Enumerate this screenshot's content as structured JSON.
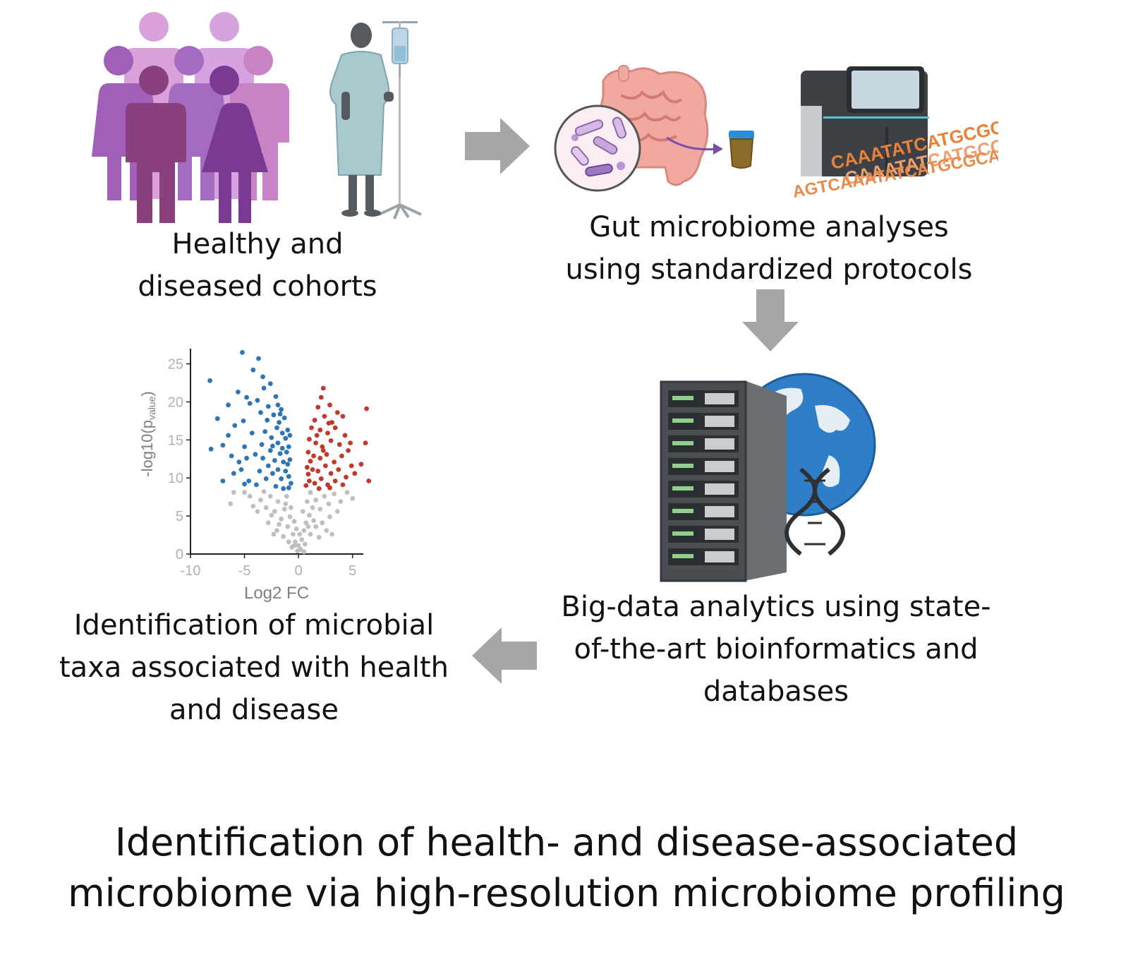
{
  "steps": {
    "cohorts": {
      "line1": "Healthy and",
      "line2": "diseased cohorts"
    },
    "gut": {
      "line1": "Gut microbiome analyses",
      "line2": "using standardized protocols"
    },
    "bigdata": {
      "line1": "Big-data analytics using state-",
      "line2": "of-the-art bioinformatics and",
      "line3": "databases"
    },
    "identification": {
      "line1": "Identification of microbial",
      "line2": "taxa associated with health",
      "line3": "and disease"
    }
  },
  "dna_sequence": {
    "line1": "CAAATATCATGCGCAT",
    "line2": "CAAATATCATGCG",
    "line3": "AGTCAAATATCATGCGCAT"
  },
  "main_title": {
    "line1": "Identification of health- and disease-associated",
    "line2": "microbiome via high-resolution microbiome profiling"
  },
  "colors": {
    "arrow": "#a6a6a6",
    "up": "#c0392b",
    "down": "#2e75b6",
    "ns": "#bfbfbf"
  },
  "chart_data": {
    "type": "scatter",
    "subtype": "volcano",
    "xlabel": "Log2 FC",
    "ylabel": "-log10(p",
    "ylabel_sub": "value",
    "xlim": [
      -10,
      6
    ],
    "ylim": [
      0,
      27
    ],
    "xticks": [
      -10,
      -5,
      0,
      5
    ],
    "yticks": [
      0,
      5,
      10,
      15,
      20,
      25
    ],
    "series": [
      {
        "name": "",
        "color": "#2e75b6",
        "points": [
          [
            -8.2,
            22.8
          ],
          [
            -5.2,
            26.5
          ],
          [
            -3.7,
            25.7
          ],
          [
            -4.2,
            24.2
          ],
          [
            -3.3,
            23.3
          ],
          [
            -6.5,
            19.6
          ],
          [
            -8.1,
            13.8
          ],
          [
            -7.5,
            17.8
          ],
          [
            -5.6,
            21.3
          ],
          [
            -4.8,
            20.6
          ],
          [
            -4.5,
            19.8
          ],
          [
            -3.2,
            21.8
          ],
          [
            -2.6,
            22.4
          ],
          [
            -3.8,
            20.2
          ],
          [
            -2.8,
            19.4
          ],
          [
            -2.1,
            20.7
          ],
          [
            -1.9,
            19.6
          ],
          [
            -1.6,
            19.0
          ],
          [
            -6.5,
            15.6
          ],
          [
            -5.9,
            16.9
          ],
          [
            -5.1,
            17.5
          ],
          [
            -3.5,
            18.6
          ],
          [
            -2.9,
            17.6
          ],
          [
            -2.3,
            18.3
          ],
          [
            -1.8,
            17.3
          ],
          [
            -1.3,
            17.9
          ],
          [
            -1.0,
            16.3
          ],
          [
            -7.0,
            14.3
          ],
          [
            -5.0,
            14.1
          ],
          [
            -4.3,
            15.9
          ],
          [
            -3.1,
            16.1
          ],
          [
            -2.5,
            15.3
          ],
          [
            -1.9,
            14.6
          ],
          [
            -1.5,
            15.9
          ],
          [
            -1.2,
            15.2
          ],
          [
            -0.9,
            14.1
          ],
          [
            -6.2,
            12.9
          ],
          [
            -5.5,
            12.1
          ],
          [
            -4.0,
            13.1
          ],
          [
            -3.3,
            12.6
          ],
          [
            -2.6,
            13.6
          ],
          [
            -2.2,
            12.3
          ],
          [
            -1.7,
            13.2
          ],
          [
            -1.4,
            12.1
          ],
          [
            -1.1,
            13.4
          ],
          [
            -0.8,
            12.4
          ],
          [
            -7.0,
            9.6
          ],
          [
            -6.0,
            10.6
          ],
          [
            -5.3,
            11.1
          ],
          [
            -4.6,
            9.6
          ],
          [
            -3.6,
            10.9
          ],
          [
            -3.0,
            9.9
          ],
          [
            -2.4,
            10.6
          ],
          [
            -1.9,
            11.1
          ],
          [
            -1.6,
            9.9
          ],
          [
            -1.2,
            10.9
          ],
          [
            -0.9,
            10.2
          ],
          [
            -0.7,
            9.3
          ],
          [
            -2.8,
            11.6
          ],
          [
            -3.9,
            9.1
          ],
          [
            -1.4,
            8.6
          ],
          [
            -2.1,
            8.9
          ],
          [
            -0.9,
            8.7
          ],
          [
            -5.0,
            9.2
          ],
          [
            -4.8,
            12.6
          ],
          [
            -2.0,
            16.6
          ],
          [
            -1.5,
            13.9
          ],
          [
            -1.0,
            11.8
          ],
          [
            -2.4,
            14.2
          ],
          [
            -3.4,
            14.4
          ],
          [
            -0.8,
            15.6
          ],
          [
            -1.7,
            18.4
          ]
        ]
      },
      {
        "name": "",
        "color": "#c0392b",
        "points": [
          [
            2.3,
            21.8
          ],
          [
            6.3,
            19.1
          ],
          [
            6.2,
            14.6
          ],
          [
            6.5,
            9.6
          ],
          [
            5.2,
            10.6
          ],
          [
            2.1,
            20.6
          ],
          [
            2.9,
            19.6
          ],
          [
            3.6,
            18.6
          ],
          [
            4.1,
            18.1
          ],
          [
            1.8,
            19.3
          ],
          [
            2.4,
            18.1
          ],
          [
            3.1,
            17.3
          ],
          [
            1.5,
            17.6
          ],
          [
            1.2,
            16.6
          ],
          [
            2.0,
            16.3
          ],
          [
            2.7,
            15.9
          ],
          [
            3.4,
            16.6
          ],
          [
            4.3,
            15.6
          ],
          [
            1.0,
            15.1
          ],
          [
            1.6,
            14.6
          ],
          [
            2.2,
            14.1
          ],
          [
            3.0,
            14.9
          ],
          [
            3.8,
            14.4
          ],
          [
            4.6,
            13.6
          ],
          [
            0.9,
            13.4
          ],
          [
            1.4,
            12.9
          ],
          [
            2.0,
            12.6
          ],
          [
            2.6,
            13.1
          ],
          [
            3.3,
            12.1
          ],
          [
            4.0,
            12.9
          ],
          [
            4.9,
            11.6
          ],
          [
            0.8,
            11.4
          ],
          [
            1.3,
            11.1
          ],
          [
            1.8,
            10.9
          ],
          [
            2.5,
            11.6
          ],
          [
            3.0,
            10.6
          ],
          [
            3.7,
            11.1
          ],
          [
            4.4,
            10.1
          ],
          [
            1.0,
            9.6
          ],
          [
            1.5,
            9.3
          ],
          [
            2.1,
            9.9
          ],
          [
            2.7,
            9.1
          ],
          [
            3.4,
            9.6
          ],
          [
            4.1,
            9.1
          ],
          [
            0.7,
            9.0
          ],
          [
            1.9,
            8.6
          ],
          [
            2.9,
            8.7
          ],
          [
            5.8,
            11.8
          ],
          [
            1.1,
            12.2
          ],
          [
            1.7,
            15.6
          ],
          [
            2.3,
            13.6
          ],
          [
            0.9,
            10.5
          ],
          [
            2.8,
            17.2
          ],
          [
            4.8,
            14.6
          ]
        ]
      },
      {
        "name": "",
        "color": "#bfbfbf",
        "points": [
          [
            -6.3,
            6.6
          ],
          [
            -6.0,
            8.1
          ],
          [
            -5.0,
            8.1
          ],
          [
            -4.5,
            7.6
          ],
          [
            -3.5,
            7.1
          ],
          [
            -3.0,
            6.1
          ],
          [
            -2.6,
            7.6
          ],
          [
            -2.2,
            5.6
          ],
          [
            -1.9,
            6.9
          ],
          [
            -1.6,
            4.6
          ],
          [
            -1.3,
            5.9
          ],
          [
            -1.0,
            3.6
          ],
          [
            -0.8,
            4.9
          ],
          [
            -0.5,
            2.6
          ],
          [
            -0.3,
            1.6
          ],
          [
            0.0,
            1.1
          ],
          [
            0.3,
            1.9
          ],
          [
            0.5,
            3.1
          ],
          [
            0.7,
            4.1
          ],
          [
            1.0,
            5.1
          ],
          [
            1.3,
            6.1
          ],
          [
            1.6,
            7.1
          ],
          [
            2.0,
            5.9
          ],
          [
            2.4,
            7.6
          ],
          [
            2.8,
            6.6
          ],
          [
            3.3,
            7.9
          ],
          [
            3.9,
            6.9
          ],
          [
            4.5,
            8.1
          ],
          [
            5.0,
            7.3
          ],
          [
            -2.8,
            4.1
          ],
          [
            -2.0,
            3.1
          ],
          [
            -1.4,
            2.3
          ],
          [
            -0.9,
            1.6
          ],
          [
            -0.6,
            0.9
          ],
          [
            0.2,
            0.6
          ],
          [
            0.6,
            1.3
          ],
          [
            1.1,
            2.6
          ],
          [
            1.6,
            3.6
          ],
          [
            2.2,
            4.1
          ],
          [
            2.9,
            4.9
          ],
          [
            -3.8,
            5.6
          ],
          [
            -4.2,
            6.3
          ],
          [
            3.6,
            5.6
          ],
          [
            -0.4,
            4.3
          ],
          [
            0.4,
            5.6
          ],
          [
            -1.1,
            7.6
          ],
          [
            1.1,
            8.1
          ],
          [
            -2.3,
            2.6
          ],
          [
            1.9,
            2.2
          ],
          [
            -1.8,
            3.9
          ],
          [
            0.9,
            3.6
          ],
          [
            -0.2,
            3.3
          ],
          [
            0.1,
            2.6
          ],
          [
            -1.2,
            6.6
          ],
          [
            1.4,
            4.4
          ],
          [
            -2.5,
            5.1
          ],
          [
            2.6,
            3.1
          ],
          [
            -0.7,
            6.1
          ],
          [
            0.8,
            6.9
          ],
          [
            -3.2,
            8.2
          ],
          [
            3.1,
            2.6
          ],
          [
            -0.1,
            0.4
          ],
          [
            0.5,
            0.3
          ],
          [
            -0.4,
            1.1
          ]
        ]
      }
    ]
  }
}
